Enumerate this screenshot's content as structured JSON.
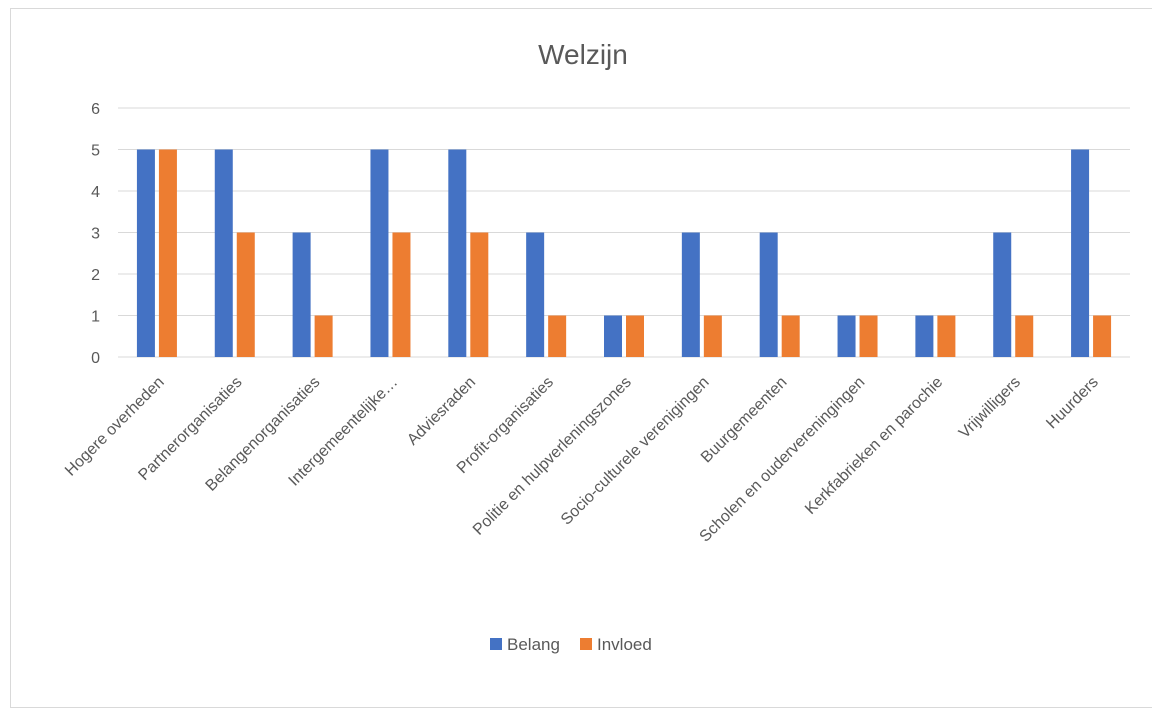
{
  "chart_data": {
    "type": "bar",
    "title": "Welzijn",
    "xlabel": "",
    "ylabel": "",
    "ylim": [
      0,
      6
    ],
    "yticks": [
      "0",
      "1",
      "2",
      "3",
      "4",
      "5",
      "6"
    ],
    "grid": true,
    "legend_position": "bottom",
    "categories": [
      "Hogere overheden",
      "Partnerorganisaties",
      "Belangenorganisaties",
      "Intergemeentelijke…",
      "Adviesraden",
      "Profit-organisaties",
      "Politie en hulpverleningszones",
      "Socio-culturele verenigingen",
      "Buurgemeenten",
      "Scholen en oudervereningingen",
      "Kerkfabrieken en parochie",
      "Vrijwilligers",
      "Huurders"
    ],
    "series": [
      {
        "name": "Belang",
        "color": "#4472c4",
        "values": [
          5,
          5,
          3,
          5,
          5,
          3,
          1,
          3,
          3,
          1,
          1,
          3,
          5
        ]
      },
      {
        "name": "Invloed",
        "color": "#ed7d31",
        "values": [
          5,
          3,
          1,
          3,
          3,
          1,
          1,
          1,
          1,
          1,
          1,
          1,
          1
        ]
      }
    ]
  }
}
